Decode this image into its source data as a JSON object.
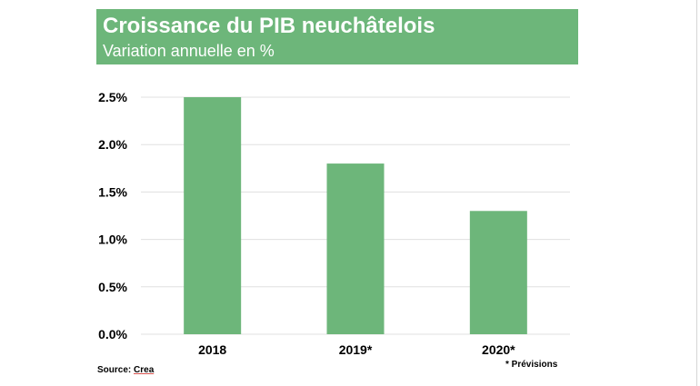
{
  "header": {
    "title": "Croissance du PIB neuchâtelois",
    "subtitle": "Variation annuelle en %"
  },
  "colors": {
    "bar": "#6db67a",
    "header_bg": "#6db67a",
    "grid": "#e0e0e0",
    "text": "#000000"
  },
  "chart_data": {
    "type": "bar",
    "categories": [
      "2018",
      "2019*",
      "2020*"
    ],
    "values": [
      2.5,
      1.8,
      1.3
    ],
    "title": "Croissance du PIB neuchâtelois",
    "subtitle": "Variation annuelle en %",
    "ylim": [
      0,
      2.5
    ],
    "yticks": [
      "0.0%",
      "0.5%",
      "1.0%",
      "1.5%",
      "2.0%",
      "2.5%"
    ],
    "grid": true,
    "legend": "none"
  },
  "footer": {
    "source_prefix": "Source: ",
    "source_name": "Crea",
    "note": "* Prévisions"
  }
}
